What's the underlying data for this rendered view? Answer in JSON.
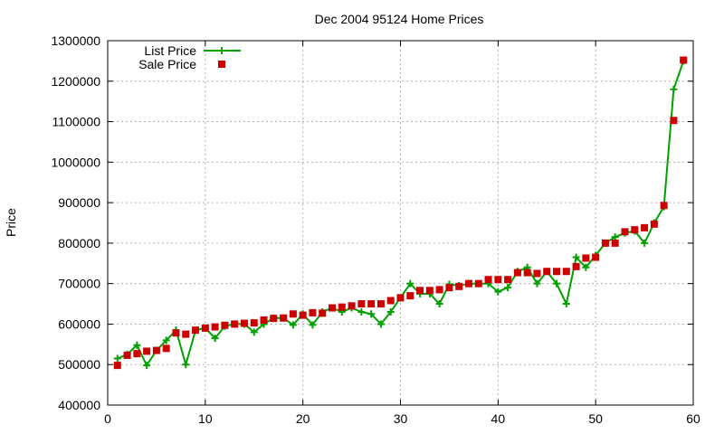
{
  "chart_data": {
    "type": "line",
    "title": "Dec 2004 95124 Home Prices",
    "xlabel": "",
    "ylabel": "Price",
    "xlim": [
      0,
      60
    ],
    "ylim": [
      400000,
      1300000
    ],
    "x_ticks": [
      0,
      10,
      20,
      30,
      40,
      50,
      60
    ],
    "y_ticks": [
      400000,
      500000,
      600000,
      700000,
      800000,
      900000,
      1000000,
      1100000,
      1200000,
      1300000
    ],
    "grid": true,
    "legend_position": "top-left",
    "series": [
      {
        "name": "List Price",
        "style": "line-plus",
        "color": "#00a000",
        "x": [
          1,
          2,
          3,
          4,
          5,
          6,
          7,
          8,
          9,
          10,
          11,
          12,
          13,
          14,
          15,
          16,
          17,
          18,
          19,
          20,
          21,
          22,
          23,
          24,
          25,
          26,
          27,
          28,
          29,
          30,
          31,
          32,
          33,
          34,
          35,
          36,
          37,
          38,
          39,
          40,
          41,
          42,
          43,
          44,
          45,
          46,
          47,
          48,
          49,
          50,
          51,
          52,
          53,
          54,
          55,
          56,
          57,
          58,
          59
        ],
        "y": [
          515000,
          525000,
          548000,
          498000,
          535000,
          560000,
          585000,
          500000,
          585000,
          590000,
          565000,
          595000,
          600000,
          600000,
          580000,
          600000,
          615000,
          615000,
          598000,
          625000,
          598000,
          630000,
          640000,
          630000,
          640000,
          630000,
          625000,
          600000,
          630000,
          665000,
          700000,
          675000,
          675000,
          650000,
          698000,
          695000,
          700000,
          700000,
          700000,
          680000,
          690000,
          730000,
          740000,
          700000,
          730000,
          700000,
          650000,
          765000,
          740000,
          770000,
          800000,
          815000,
          825000,
          830000,
          800000,
          850000,
          890000,
          1180000,
          1250000
        ]
      },
      {
        "name": "Sale Price",
        "style": "square-points",
        "color": "#cc0000",
        "x": [
          1,
          2,
          3,
          4,
          5,
          6,
          7,
          8,
          9,
          10,
          11,
          12,
          13,
          14,
          15,
          16,
          17,
          18,
          19,
          20,
          21,
          22,
          23,
          24,
          25,
          26,
          27,
          28,
          29,
          30,
          31,
          32,
          33,
          34,
          35,
          36,
          37,
          38,
          39,
          40,
          41,
          42,
          43,
          44,
          45,
          46,
          47,
          48,
          49,
          50,
          51,
          52,
          53,
          54,
          55,
          56,
          57,
          58,
          59
        ],
        "y": [
          498000,
          523000,
          527000,
          533000,
          535000,
          540000,
          578000,
          575000,
          585000,
          590000,
          593000,
          597000,
          600000,
          602000,
          603000,
          610000,
          614000,
          615000,
          625000,
          622000,
          628000,
          627000,
          640000,
          642000,
          645000,
          650000,
          650000,
          650000,
          658000,
          665000,
          670000,
          683000,
          683000,
          685000,
          690000,
          693000,
          700000,
          700000,
          710000,
          710000,
          710000,
          727000,
          727000,
          725000,
          730000,
          730000,
          730000,
          742000,
          763000,
          765000,
          800000,
          800000,
          828000,
          833000,
          838000,
          847000,
          893000,
          1103000,
          1252000
        ]
      }
    ]
  }
}
